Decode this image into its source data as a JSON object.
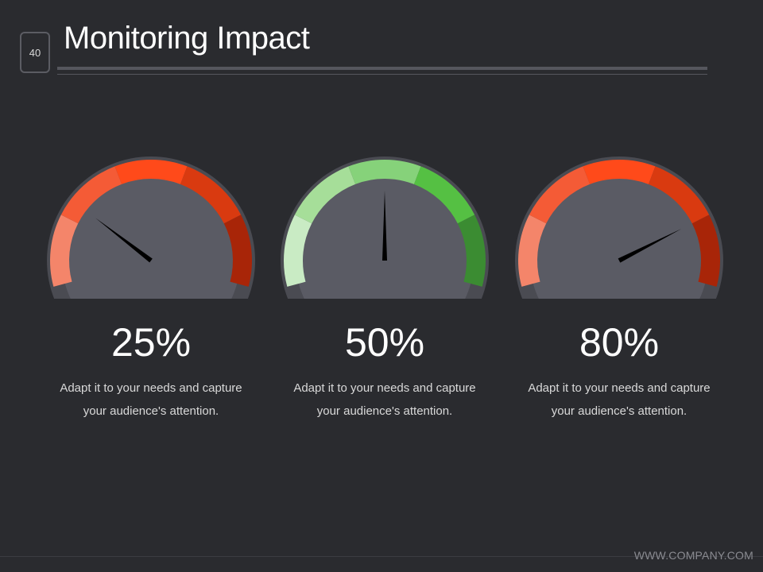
{
  "slide": {
    "number": "40",
    "title": "Monitoring Impact",
    "footer": "WWW.COMPANY.COM"
  },
  "gauges": [
    {
      "value_label": "25%",
      "value": 25,
      "description": "Adapt it to your needs and capture your audience's attention.",
      "colors": [
        "#f4856a",
        "#f45b36",
        "#ff4a1a",
        "#d93a10",
        "#a82508"
      ]
    },
    {
      "value_label": "50%",
      "value": 50,
      "description": "Adapt it to your needs and capture your audience's attention.",
      "colors": [
        "#c9ebc4",
        "#a6de99",
        "#86d27a",
        "#55c043",
        "#3b8c32"
      ]
    },
    {
      "value_label": "80%",
      "value": 80,
      "description": "Adapt it to your needs and capture your audience's attention.",
      "colors": [
        "#f4856a",
        "#f45b36",
        "#ff4a1a",
        "#d93a10",
        "#a82508"
      ]
    }
  ],
  "style": {
    "background": "#2a2b2f",
    "gauge_body": "#5a5b64",
    "gauge_rim": "#4a4b52",
    "needle": "#000000"
  }
}
